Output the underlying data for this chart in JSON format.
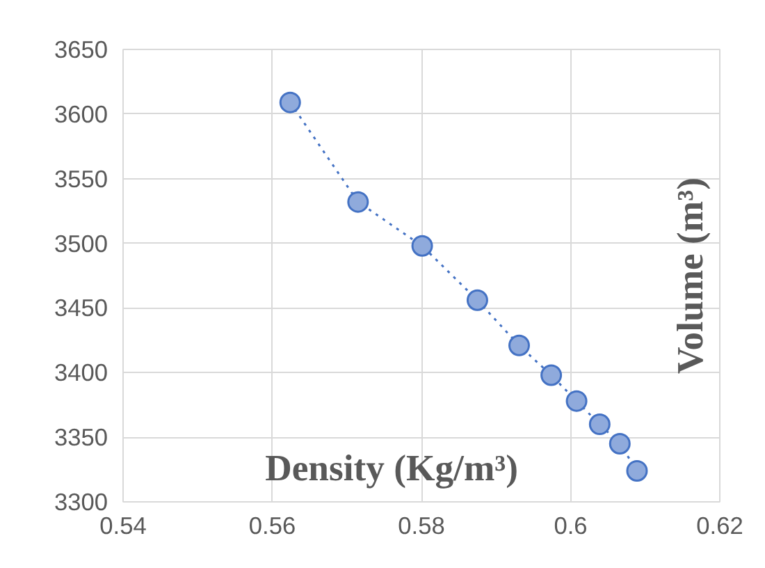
{
  "chart_data": {
    "type": "line",
    "xlabel": "Density (Kg/m³)",
    "ylabel": "Volume (m³)",
    "x": [
      0.5624,
      0.5715,
      0.5801,
      0.5875,
      0.5931,
      0.5974,
      0.6008,
      0.6039,
      0.6066,
      0.6089
    ],
    "series": [
      {
        "color": "#4472c4",
        "values": [
          3609,
          3532,
          3498,
          3456,
          3421,
          3398,
          3378,
          3360,
          3345,
          3324
        ]
      }
    ],
    "xlim": [
      0.54,
      0.62
    ],
    "xticks": [
      0.54,
      0.56,
      0.58,
      0.6,
      0.62
    ],
    "ylim": [
      3300,
      3650
    ],
    "yticks": [
      3300,
      3350,
      3400,
      3450,
      3500,
      3550,
      3600,
      3650
    ],
    "grid": true,
    "marker": "circle",
    "line_style": "dotted"
  }
}
